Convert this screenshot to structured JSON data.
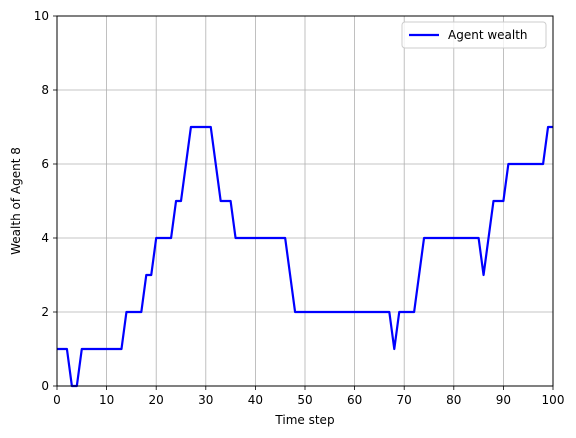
{
  "chart_data": {
    "type": "line",
    "title": "",
    "xlabel": "Time step",
    "ylabel": "Wealth of Agent 8",
    "xlim": [
      0,
      100
    ],
    "ylim": [
      0,
      10
    ],
    "xticks": [
      0,
      10,
      20,
      30,
      40,
      50,
      60,
      70,
      80,
      90,
      100
    ],
    "yticks": [
      0,
      2,
      4,
      6,
      8,
      10
    ],
    "grid": true,
    "legend_position": "upper right",
    "series": [
      {
        "name": "Agent wealth",
        "color": "#0000ff",
        "x": [
          0,
          1,
          2,
          3,
          4,
          5,
          6,
          7,
          8,
          9,
          10,
          11,
          12,
          13,
          14,
          15,
          16,
          17,
          18,
          19,
          20,
          21,
          22,
          23,
          24,
          25,
          26,
          27,
          28,
          29,
          30,
          31,
          32,
          33,
          34,
          35,
          36,
          37,
          38,
          39,
          40,
          41,
          42,
          43,
          44,
          45,
          46,
          47,
          48,
          49,
          50,
          51,
          52,
          53,
          54,
          55,
          56,
          57,
          58,
          59,
          60,
          61,
          62,
          63,
          64,
          65,
          66,
          67,
          68,
          69,
          70,
          71,
          72,
          73,
          74,
          75,
          76,
          77,
          78,
          79,
          80,
          81,
          82,
          83,
          84,
          85,
          86,
          87,
          88,
          89,
          90,
          91,
          92,
          93,
          94,
          95,
          96,
          97,
          98,
          99,
          100
        ],
        "y": [
          1,
          1,
          1,
          0,
          0,
          1,
          1,
          1,
          1,
          1,
          1,
          1,
          1,
          1,
          2,
          2,
          2,
          2,
          3,
          3,
          4,
          4,
          4,
          4,
          5,
          5,
          6,
          7,
          7,
          7,
          7,
          7,
          6,
          5,
          5,
          5,
          4,
          4,
          4,
          4,
          4,
          4,
          4,
          4,
          4,
          4,
          4,
          3,
          2,
          2,
          2,
          2,
          2,
          2,
          2,
          2,
          2,
          2,
          2,
          2,
          2,
          2,
          2,
          2,
          2,
          2,
          2,
          2,
          1,
          2,
          2,
          2,
          2,
          3,
          4,
          4,
          4,
          4,
          4,
          4,
          4,
          4,
          4,
          4,
          4,
          4,
          3,
          4,
          5,
          5,
          5,
          6,
          6,
          6,
          6,
          6,
          6,
          6,
          6,
          7,
          7
        ]
      }
    ]
  }
}
